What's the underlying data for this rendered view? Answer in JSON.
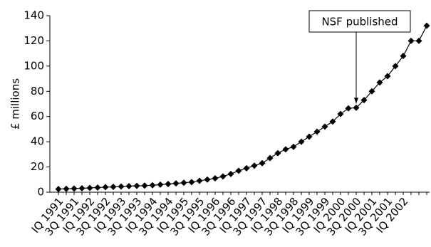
{
  "chart_data": {
    "type": "line",
    "y_label": "£ millions",
    "annotation": "NSF published",
    "categories": [
      "IQ 1991",
      null,
      "3Q 1991",
      null,
      "IQ 1992",
      null,
      "3Q 1992",
      null,
      "IQ 1993",
      null,
      "3Q 1993",
      null,
      "IQ 1994",
      null,
      "3Q 1994",
      null,
      "IQ 1995",
      null,
      "3Q 1995",
      null,
      "IQ 1996",
      null,
      "3Q 1996",
      null,
      "IQ 1997",
      null,
      "3Q 1997",
      null,
      "IQ 1998",
      null,
      "3Q 1998",
      null,
      "IQ 1999",
      null,
      "3Q 1999",
      null,
      "IQ 2000",
      null,
      "3Q 2000",
      null,
      "IQ 2001",
      null,
      "3Q 2001",
      null,
      "IQ 2002",
      null,
      null,
      null
    ],
    "values": [
      2.5,
      2.7,
      2.9,
      3.1,
      3.4,
      3.7,
      4,
      4.2,
      4.5,
      4.8,
      5,
      5.2,
      5.5,
      6,
      6.5,
      7,
      7.5,
      8,
      9,
      10,
      11,
      12.5,
      14.5,
      17,
      19,
      21,
      23,
      27,
      31,
      34,
      36,
      40,
      44,
      48,
      52,
      56,
      62,
      66.5,
      67,
      73,
      80,
      87,
      92,
      100,
      108,
      120,
      120,
      132
    ],
    "color": "#000000",
    "ylim": [
      0,
      140
    ],
    "yticks": [
      0,
      20,
      40,
      60,
      80,
      100,
      120,
      140
    ]
  }
}
